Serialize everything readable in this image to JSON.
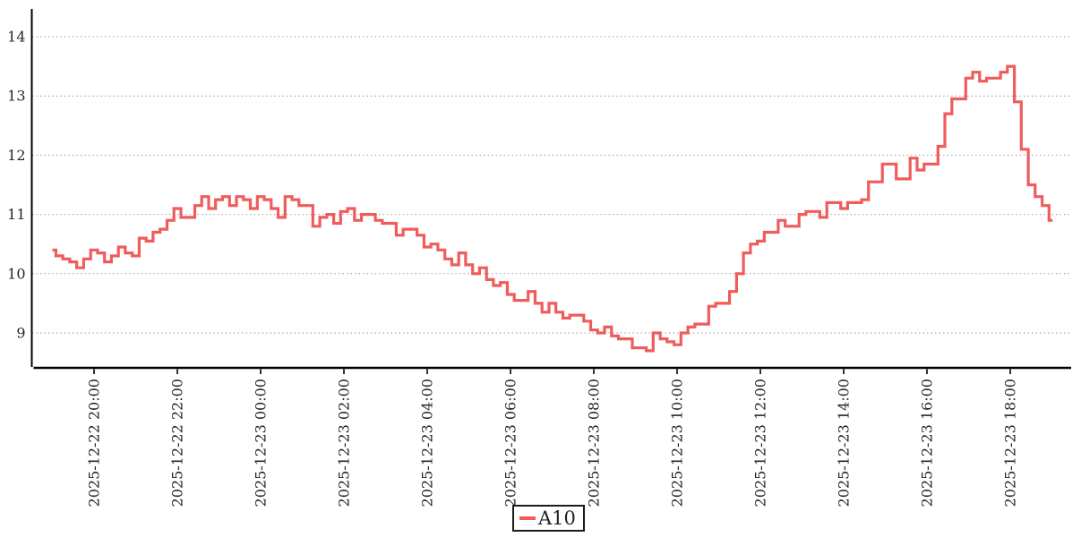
{
  "chart_data": {
    "type": "line",
    "title": "",
    "xlabel": "",
    "ylabel": "",
    "grid": "horizontal-dotted",
    "line_style": "step-mid",
    "legend_position": "bottom-center",
    "y_ticks": [
      9,
      10,
      11,
      12,
      13,
      14
    ],
    "y_tick_labels": [
      "9",
      "10",
      "11",
      "12",
      "13",
      "14"
    ],
    "ylim": [
      8.44,
      14.47
    ],
    "x_tick_labels": [
      "2025-12-22 20:00",
      "2025-12-22 22:00",
      "2025-12-23 00:00",
      "2025-12-23 02:00",
      "2025-12-23 04:00",
      "2025-12-23 06:00",
      "2025-12-23 08:00",
      "2025-12-23 10:00",
      "2025-12-23 12:00",
      "2025-12-23 14:00",
      "2025-12-23 16:00",
      "2025-12-23 18:00"
    ],
    "series": [
      {
        "name": "A10",
        "color": "#ef5c5c",
        "start": "2025-12-22 19:00",
        "end": "2025-12-23 19:00",
        "interval_minutes": 10,
        "values": [
          10.4,
          10.3,
          10.25,
          10.2,
          10.1,
          10.25,
          10.4,
          10.35,
          10.2,
          10.3,
          10.45,
          10.35,
          10.3,
          10.6,
          10.55,
          10.7,
          10.75,
          10.9,
          11.1,
          10.95,
          10.95,
          11.15,
          11.3,
          11.1,
          11.25,
          11.3,
          11.15,
          11.3,
          11.25,
          11.1,
          11.3,
          11.25,
          11.1,
          10.95,
          11.3,
          11.25,
          11.15,
          11.15,
          10.8,
          10.95,
          11.0,
          10.85,
          11.05,
          11.1,
          10.9,
          11.0,
          11.0,
          10.9,
          10.85,
          10.85,
          10.65,
          10.75,
          10.75,
          10.65,
          10.45,
          10.5,
          10.4,
          10.25,
          10.15,
          10.35,
          10.15,
          10.0,
          10.1,
          9.9,
          9.8,
          9.85,
          9.65,
          9.55,
          9.55,
          9.7,
          9.5,
          9.35,
          9.5,
          9.35,
          9.25,
          9.3,
          9.3,
          9.2,
          9.05,
          9.0,
          9.1,
          8.95,
          8.9,
          8.9,
          8.75,
          8.75,
          8.7,
          9.0,
          8.9,
          8.85,
          8.8,
          9.0,
          9.1,
          9.15,
          9.15,
          9.45,
          9.5,
          9.5,
          9.7,
          10.0,
          10.35,
          10.5,
          10.55,
          10.7,
          10.7,
          10.9,
          10.8,
          10.8,
          11.0,
          11.05,
          11.05,
          10.95,
          11.2,
          11.2,
          11.1,
          11.2,
          11.2,
          11.25,
          11.55,
          11.55,
          11.85,
          11.85,
          11.6,
          11.6,
          11.95,
          11.75,
          11.85,
          11.85,
          12.15,
          12.7,
          12.95,
          12.95,
          13.3,
          13.4,
          13.25,
          13.3,
          13.3,
          13.4,
          13.5,
          12.9,
          12.1,
          11.5,
          11.3,
          11.15,
          10.9
        ]
      }
    ]
  },
  "legend": {
    "items": [
      {
        "label": "A10",
        "color": "#ef5c5c"
      }
    ]
  },
  "colors": {
    "axis": "#000000",
    "grid": "#9a9a9a",
    "tick_text": "#262626",
    "background": "#ffffff",
    "series": "#ef5c5c"
  }
}
